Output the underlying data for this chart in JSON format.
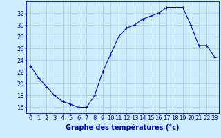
{
  "hours": [
    0,
    1,
    2,
    3,
    4,
    5,
    6,
    7,
    8,
    9,
    10,
    11,
    12,
    13,
    14,
    15,
    16,
    17,
    18,
    19,
    20,
    21,
    22,
    23
  ],
  "temps": [
    23.0,
    21.0,
    19.5,
    18.0,
    17.0,
    16.5,
    16.0,
    16.0,
    18.0,
    22.0,
    25.0,
    28.0,
    29.5,
    30.0,
    31.0,
    31.5,
    32.0,
    33.0,
    33.0,
    33.0,
    30.0,
    26.5,
    26.5,
    24.5
  ],
  "line_color": "#0000cc",
  "marker": "+",
  "bg_color": "#cceeff",
  "grid_color": "#aacccc",
  "axis_color": "#0000aa",
  "xlabel": "Graphe des températures (°c)",
  "ylabel_ticks": [
    16,
    18,
    20,
    22,
    24,
    26,
    28,
    30,
    32
  ],
  "ylim": [
    15.0,
    34.0
  ],
  "xlim": [
    -0.5,
    23.5
  ],
  "tick_fontsize": 6,
  "xlabel_fontsize": 7
}
